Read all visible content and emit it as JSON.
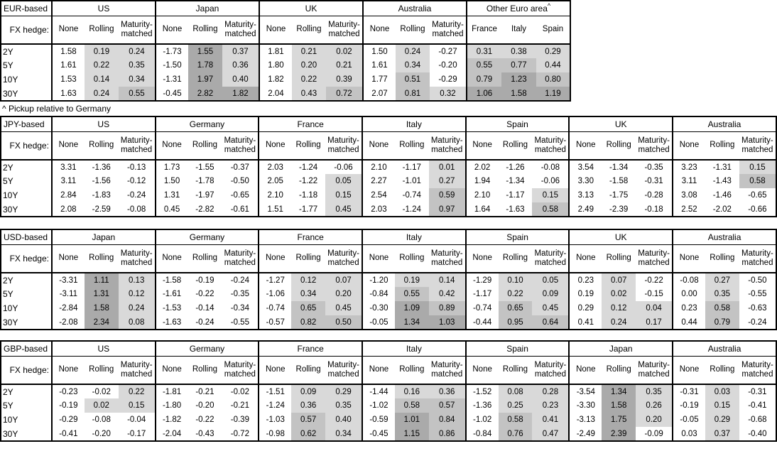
{
  "page": {
    "footnote": "^ Pickup relative to Germany",
    "fx_hedge_label": "FX hedge:",
    "maturity_labels": [
      "2Y",
      "5Y",
      "10Y",
      "30Y"
    ],
    "default_subheaders": [
      "None",
      "Rolling",
      "Maturity-matched"
    ]
  },
  "colors": {
    "shade_light": "#d9d9d9",
    "shade_medium": "#c3c3c3",
    "shade_dark": "#aaaaaa",
    "border": "#000000",
    "background": "#ffffff"
  },
  "shading": {
    "thresholds": [
      0,
      0.5,
      1.0
    ],
    "note": "cells with value<0 unshaded; 0 to 0.5 light; 0.5 to 1 medium; 1+ dark; None column never shaded"
  },
  "tables": [
    {
      "base": "EUR-based",
      "groups": [
        {
          "name": "US",
          "rows": [
            [
              1.58,
              0.19,
              0.24
            ],
            [
              1.61,
              0.22,
              0.35
            ],
            [
              1.53,
              0.14,
              0.34
            ],
            [
              1.63,
              0.24,
              0.55
            ]
          ]
        },
        {
          "name": "Japan",
          "rows": [
            [
              -1.73,
              1.55,
              0.37
            ],
            [
              -1.5,
              1.78,
              0.36
            ],
            [
              -1.31,
              1.97,
              0.4
            ],
            [
              -0.45,
              2.82,
              1.82
            ]
          ]
        },
        {
          "name": "UK",
          "rows": [
            [
              1.81,
              0.21,
              0.02
            ],
            [
              1.8,
              0.2,
              0.21
            ],
            [
              1.82,
              0.22,
              0.39
            ],
            [
              2.04,
              0.43,
              0.72
            ]
          ]
        },
        {
          "name": "Australia",
          "rows": [
            [
              1.5,
              0.24,
              -0.27
            ],
            [
              1.61,
              0.34,
              -0.2
            ],
            [
              1.77,
              0.51,
              -0.29
            ],
            [
              2.07,
              0.81,
              0.32
            ]
          ]
        },
        {
          "name": "Other Euro area",
          "superscript": "^",
          "subheaders": [
            "France",
            "Italy",
            "Spain"
          ],
          "shaded_columns": [
            0,
            1,
            2
          ],
          "rows": [
            [
              0.31,
              0.38,
              0.29
            ],
            [
              0.55,
              0.77,
              0.44
            ],
            [
              0.79,
              1.23,
              0.8
            ],
            [
              1.06,
              1.58,
              1.19
            ]
          ]
        }
      ]
    },
    {
      "base": "JPY-based",
      "groups": [
        {
          "name": "US",
          "rows": [
            [
              3.31,
              -1.36,
              -0.13
            ],
            [
              3.11,
              -1.56,
              -0.12
            ],
            [
              2.84,
              -1.83,
              -0.24
            ],
            [
              2.08,
              -2.59,
              -0.08
            ]
          ]
        },
        {
          "name": "Germany",
          "rows": [
            [
              1.73,
              -1.55,
              -0.37
            ],
            [
              1.5,
              -1.78,
              -0.5
            ],
            [
              1.31,
              -1.97,
              -0.65
            ],
            [
              0.45,
              -2.82,
              -0.61
            ]
          ]
        },
        {
          "name": "France",
          "rows": [
            [
              2.03,
              -1.24,
              -0.06
            ],
            [
              2.05,
              -1.22,
              0.05
            ],
            [
              2.1,
              -1.18,
              0.15
            ],
            [
              1.51,
              -1.77,
              0.45
            ]
          ]
        },
        {
          "name": "Italy",
          "rows": [
            [
              2.1,
              -1.17,
              0.01
            ],
            [
              2.27,
              -1.01,
              0.27
            ],
            [
              2.54,
              -0.74,
              0.59
            ],
            [
              2.03,
              -1.24,
              0.97
            ]
          ]
        },
        {
          "name": "Spain",
          "rows": [
            [
              2.02,
              -1.26,
              -0.08
            ],
            [
              1.94,
              -1.34,
              -0.06
            ],
            [
              2.1,
              -1.17,
              0.15
            ],
            [
              1.64,
              -1.63,
              0.58
            ]
          ]
        },
        {
          "name": "UK",
          "rows": [
            [
              3.54,
              -1.34,
              -0.35
            ],
            [
              3.3,
              -1.58,
              -0.31
            ],
            [
              3.13,
              -1.75,
              -0.28
            ],
            [
              2.49,
              -2.39,
              -0.18
            ]
          ]
        },
        {
          "name": "Australia",
          "rows": [
            [
              3.23,
              -1.31,
              0.15
            ],
            [
              3.11,
              -1.43,
              0.58
            ],
            [
              3.08,
              -1.46,
              -0.65
            ],
            [
              2.52,
              -2.02,
              -0.66
            ]
          ]
        }
      ]
    },
    {
      "base": "USD-based",
      "groups": [
        {
          "name": "Japan",
          "rows": [
            [
              -3.31,
              1.11,
              0.13
            ],
            [
              -3.11,
              1.31,
              0.12
            ],
            [
              -2.84,
              1.58,
              0.24
            ],
            [
              -2.08,
              2.34,
              0.08
            ]
          ]
        },
        {
          "name": "Germany",
          "rows": [
            [
              -1.58,
              -0.19,
              -0.24
            ],
            [
              -1.61,
              -0.22,
              -0.35
            ],
            [
              -1.53,
              -0.14,
              -0.34
            ],
            [
              -1.63,
              -0.24,
              -0.55
            ]
          ]
        },
        {
          "name": "France",
          "rows": [
            [
              -1.27,
              0.12,
              0.07
            ],
            [
              -1.06,
              0.34,
              0.2
            ],
            [
              -0.74,
              0.65,
              0.45
            ],
            [
              -0.57,
              0.82,
              0.5
            ]
          ]
        },
        {
          "name": "Italy",
          "rows": [
            [
              -1.2,
              0.19,
              0.14
            ],
            [
              -0.84,
              0.55,
              0.42
            ],
            [
              -0.3,
              1.09,
              0.89
            ],
            [
              -0.05,
              1.34,
              1.03
            ]
          ]
        },
        {
          "name": "Spain",
          "rows": [
            [
              -1.29,
              0.1,
              0.05
            ],
            [
              -1.17,
              0.22,
              0.09
            ],
            [
              -0.74,
              0.65,
              0.45
            ],
            [
              -0.44,
              0.95,
              0.64
            ]
          ]
        },
        {
          "name": "UK",
          "rows": [
            [
              0.23,
              0.07,
              -0.22
            ],
            [
              0.19,
              0.02,
              -0.15
            ],
            [
              0.29,
              0.12,
              0.04
            ],
            [
              0.41,
              0.24,
              0.17
            ]
          ]
        },
        {
          "name": "Australia",
          "rows": [
            [
              -0.08,
              0.27,
              -0.5
            ],
            [
              0.0,
              0.35,
              -0.55
            ],
            [
              0.23,
              0.58,
              -0.63
            ],
            [
              0.44,
              0.79,
              -0.24
            ]
          ]
        }
      ]
    },
    {
      "base": "GBP-based",
      "groups": [
        {
          "name": "US",
          "rows": [
            [
              -0.23,
              -0.02,
              0.22
            ],
            [
              -0.19,
              0.02,
              0.15
            ],
            [
              -0.29,
              -0.08,
              -0.04
            ],
            [
              -0.41,
              -0.2,
              -0.17
            ]
          ]
        },
        {
          "name": "Germany",
          "rows": [
            [
              -1.81,
              -0.21,
              -0.02
            ],
            [
              -1.8,
              -0.2,
              -0.21
            ],
            [
              -1.82,
              -0.22,
              -0.39
            ],
            [
              -2.04,
              -0.43,
              -0.72
            ]
          ]
        },
        {
          "name": "France",
          "rows": [
            [
              -1.51,
              0.09,
              0.29
            ],
            [
              -1.24,
              0.36,
              0.35
            ],
            [
              -1.03,
              0.57,
              0.4
            ],
            [
              -0.98,
              0.62,
              0.34
            ]
          ]
        },
        {
          "name": "Italy",
          "rows": [
            [
              -1.44,
              0.16,
              0.36
            ],
            [
              -1.02,
              0.58,
              0.57
            ],
            [
              -0.59,
              1.01,
              0.84
            ],
            [
              -0.45,
              1.15,
              0.86
            ]
          ]
        },
        {
          "name": "Spain",
          "rows": [
            [
              -1.52,
              0.08,
              0.28
            ],
            [
              -1.36,
              0.25,
              0.23
            ],
            [
              -1.02,
              0.58,
              0.41
            ],
            [
              -0.84,
              0.76,
              0.47
            ]
          ]
        },
        {
          "name": "Japan",
          "rows": [
            [
              -3.54,
              1.34,
              0.35
            ],
            [
              -3.3,
              1.58,
              0.26
            ],
            [
              -3.13,
              1.75,
              0.2
            ],
            [
              -2.49,
              2.39,
              -0.09
            ]
          ]
        },
        {
          "name": "Australia",
          "rows": [
            [
              -0.31,
              0.03,
              -0.31
            ],
            [
              -0.19,
              0.15,
              -0.41
            ],
            [
              -0.05,
              0.29,
              -0.68
            ],
            [
              0.03,
              0.37,
              -0.4
            ]
          ]
        }
      ]
    }
  ]
}
